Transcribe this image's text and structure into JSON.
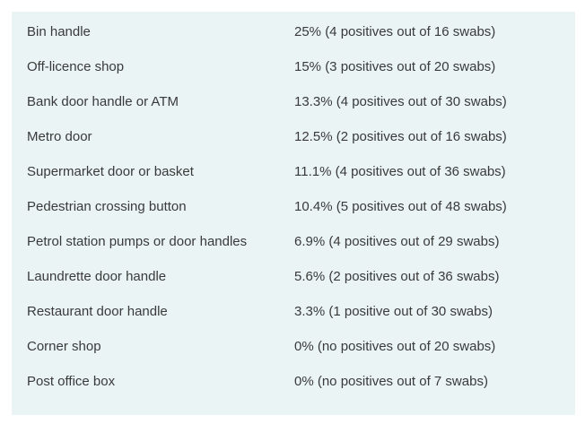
{
  "table": {
    "rows": [
      {
        "location": "Bin handle",
        "result": "25% (4 positives out of 16 swabs)"
      },
      {
        "location": "Off-licence shop",
        "result": "15% (3 positives out of 20 swabs)"
      },
      {
        "location": "Bank door handle or ATM",
        "result": "13.3% (4 positives out of 30 swabs)"
      },
      {
        "location": "Metro door",
        "result": "12.5% (2 positives out of 16 swabs)"
      },
      {
        "location": "Supermarket door or basket",
        "result": "11.1% (4 positives out of 36 swabs)"
      },
      {
        "location": "Pedestrian crossing button",
        "result": "10.4% (5 positives out of 48 swabs)"
      },
      {
        "location": "Petrol station pumps or door handles",
        "result": "6.9% (4 positives out of 29 swabs)"
      },
      {
        "location": "Laundrette door handle",
        "result": "5.6% (2 positives out of 36 swabs)"
      },
      {
        "location": "Restaurant door handle",
        "result": "3.3% (1 positive out of 30 swabs)"
      },
      {
        "location": "Corner shop",
        "result": "0% (no positives out of 20 swabs)"
      },
      {
        "location": "Post office box",
        "result": "0% (no positives out of 7 swabs)"
      }
    ]
  },
  "colors": {
    "panel_background": "#eaf4f5",
    "text": "#3a3a3a"
  }
}
